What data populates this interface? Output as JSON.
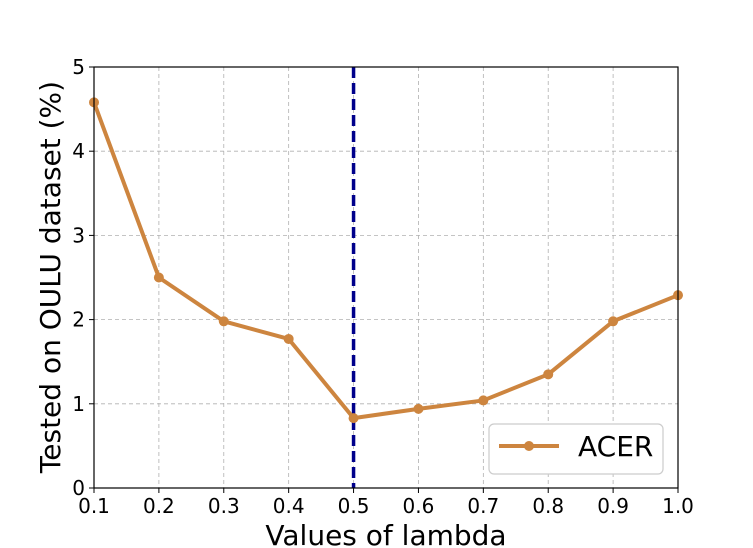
{
  "chart_data": {
    "type": "line",
    "title": "",
    "xlabel": "Values of lambda",
    "ylabel": "Tested on OULU dataset (%)",
    "xlim": [
      0.1,
      1.0
    ],
    "ylim": [
      0,
      5
    ],
    "xticks": [
      "0.1",
      "0.2",
      "0.3",
      "0.4",
      "0.5",
      "0.6",
      "0.7",
      "0.8",
      "0.9",
      "1.0"
    ],
    "yticks": [
      "0",
      "1",
      "2",
      "3",
      "4",
      "5"
    ],
    "grid": true,
    "legend_position": "lower-right",
    "series": [
      {
        "name": "ACER",
        "color": "#cd853f",
        "x": [
          0.1,
          0.2,
          0.3,
          0.4,
          0.5,
          0.6,
          0.7,
          0.8,
          0.9,
          1.0
        ],
        "values": [
          4.58,
          2.5,
          1.98,
          1.77,
          0.83,
          0.94,
          1.04,
          1.35,
          1.98,
          2.29
        ]
      }
    ],
    "annotations": [
      {
        "type": "vertical-dashed-line",
        "x": 0.5,
        "color": "#00008b"
      }
    ]
  }
}
